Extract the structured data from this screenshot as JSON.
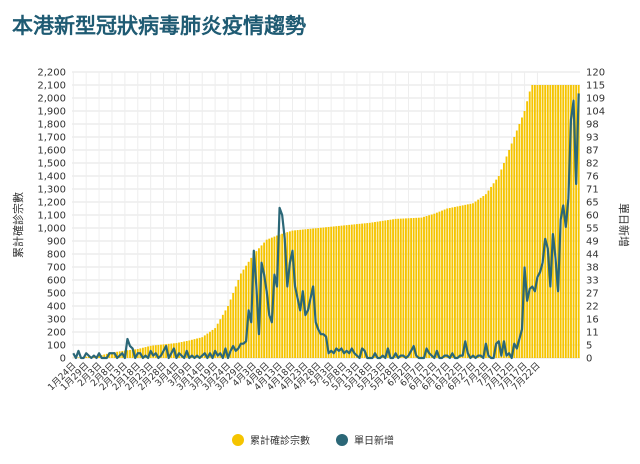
{
  "title": "本港新型冠狀病毒肺炎疫情趨勢",
  "chart_data": {
    "type": "bar+line",
    "ylabel_left": "累計確診宗數",
    "ylabel_right": "單日新增",
    "ylim_left": [
      0,
      2200
    ],
    "ylim_right": [
      0,
      120
    ],
    "yticks_left": [
      "0",
      "100",
      "200",
      "300",
      "400",
      "500",
      "600",
      "700",
      "800",
      "900",
      "1,000",
      "1,100",
      "1,200",
      "1,300",
      "1,400",
      "1,500",
      "1,600",
      "1,700",
      "1,800",
      "1,900",
      "2,000",
      "2,100",
      "2,200"
    ],
    "yticks_right": [
      "0",
      "5",
      "11",
      "16",
      "22",
      "27",
      "33",
      "38",
      "44",
      "49",
      "55",
      "60",
      "65",
      "71",
      "76",
      "82",
      "87",
      "93",
      "98",
      "104",
      "109",
      "115",
      "120"
    ],
    "x_tick_labels": [
      "1月24日",
      "1月29日",
      "2月3日",
      "2月8日",
      "2月13日",
      "2月18日",
      "2月23日",
      "2月28日",
      "3月4日",
      "3月9日",
      "3月14日",
      "3月19日",
      "3月24日",
      "3月29日",
      "4月3日",
      "4月8日",
      "4月13日",
      "4月18日",
      "4月23日",
      "4月28日",
      "5月3日",
      "5月8日",
      "5月13日",
      "5月18日",
      "5月23日",
      "5月28日",
      "6月2日",
      "6月7日",
      "6月12日",
      "6月17日",
      "6月22日",
      "6月27日",
      "7月2日",
      "7月7日",
      "7月12日",
      "7月17日",
      "7月22日"
    ],
    "cumulative_anchors": [
      [
        0,
        1
      ],
      [
        5,
        10
      ],
      [
        10,
        17
      ],
      [
        15,
        42
      ],
      [
        20,
        57
      ],
      [
        25,
        69
      ],
      [
        30,
        94
      ],
      [
        35,
        105
      ],
      [
        40,
        115
      ],
      [
        45,
        135
      ],
      [
        50,
        160
      ],
      [
        55,
        230
      ],
      [
        60,
        400
      ],
      [
        65,
        650
      ],
      [
        70,
        800
      ],
      [
        75,
        910
      ],
      [
        80,
        950
      ],
      [
        85,
        980
      ],
      [
        90,
        990
      ],
      [
        95,
        1000
      ],
      [
        100,
        1010
      ],
      [
        105,
        1020
      ],
      [
        110,
        1030
      ],
      [
        115,
        1040
      ],
      [
        120,
        1055
      ],
      [
        125,
        1070
      ],
      [
        130,
        1075
      ],
      [
        135,
        1080
      ],
      [
        140,
        1110
      ],
      [
        145,
        1150
      ],
      [
        150,
        1170
      ],
      [
        155,
        1190
      ],
      [
        160,
        1260
      ],
      [
        165,
        1400
      ],
      [
        170,
        1650
      ],
      [
        175,
        1900
      ],
      [
        177,
        2050
      ],
      [
        178,
        2100
      ]
    ],
    "daily_new": [
      2,
      0,
      3,
      0,
      0,
      2,
      1,
      0,
      1,
      0,
      2,
      0,
      0,
      0,
      2,
      2,
      2,
      0,
      1,
      2,
      0,
      8,
      5,
      4,
      0,
      2,
      2,
      0,
      1,
      0,
      3,
      1,
      2,
      0,
      1,
      3,
      5,
      0,
      2,
      4,
      0,
      2,
      1,
      0,
      3,
      0,
      1,
      0,
      1,
      0,
      1,
      2,
      0,
      2,
      0,
      3,
      1,
      2,
      0,
      4,
      0,
      3,
      5,
      3,
      4,
      6,
      6,
      7,
      20,
      15,
      45,
      30,
      10,
      40,
      35,
      28,
      18,
      15,
      35,
      30,
      63,
      60,
      50,
      30,
      40,
      45,
      30,
      25,
      20,
      28,
      18,
      20,
      25,
      30,
      15,
      12,
      10,
      10,
      9,
      2,
      3,
      2,
      4,
      3,
      4,
      2,
      3,
      2,
      4,
      2,
      1,
      0,
      4,
      3,
      0,
      0,
      0,
      2,
      0,
      0,
      1,
      0,
      4,
      0,
      0,
      2,
      0,
      1,
      1,
      0,
      1,
      3,
      5,
      1,
      0,
      0,
      0,
      4,
      2,
      1,
      0,
      3,
      0,
      0,
      1,
      1,
      0,
      2,
      0,
      0,
      1,
      1,
      7,
      2,
      0,
      1,
      0,
      1,
      1,
      0,
      6,
      1,
      0,
      0,
      6,
      7,
      1,
      7,
      1,
      2,
      0,
      6,
      4,
      8,
      12,
      38,
      24,
      29,
      30,
      28,
      34,
      36,
      40,
      50,
      46,
      30,
      52,
      42,
      28,
      58,
      64,
      55,
      67,
      100,
      108,
      73,
      111
    ]
  },
  "legend": {
    "cumulative": "累計確診宗數",
    "daily": "單日新增",
    "cumulative_color": "#f5c400",
    "daily_color": "#2b6777"
  }
}
